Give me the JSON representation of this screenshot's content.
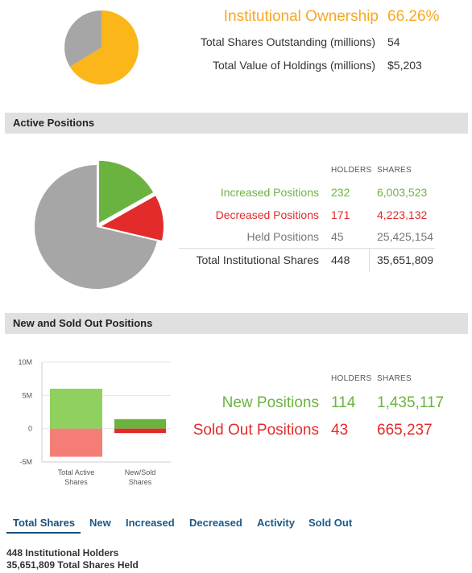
{
  "ownership": {
    "title": "Institutional Ownership",
    "percent_label": "66.26%",
    "rows": [
      {
        "label": "Total Shares Outstanding (millions)",
        "value": "54"
      },
      {
        "label": "Total Value of Holdings (millions)",
        "value": "$5,203"
      }
    ]
  },
  "active": {
    "section_title": "Active Positions",
    "col_holders": "HOLDERS",
    "col_shares": "SHARES",
    "rows": [
      {
        "label": "Increased Positions",
        "holders": "232",
        "shares": "6,003,523"
      },
      {
        "label": "Decreased Positions",
        "holders": "171",
        "shares": "4,223,132"
      },
      {
        "label": "Held Positions",
        "holders": "45",
        "shares": "25,425,154"
      },
      {
        "label": "Total Institutional Shares",
        "holders": "448",
        "shares": "35,651,809"
      }
    ]
  },
  "newsold": {
    "section_title": "New and Sold Out Positions",
    "col_holders": "HOLDERS",
    "col_shares": "SHARES",
    "rows": [
      {
        "label": "New Positions",
        "holders": "114",
        "shares": "1,435,117"
      },
      {
        "label": "Sold Out Positions",
        "holders": "43",
        "shares": "665,237"
      }
    ]
  },
  "tabs": [
    "Total Shares",
    "New",
    "Increased",
    "Decreased",
    "Activity",
    "Sold Out"
  ],
  "summary": {
    "line1": "448 Institutional Holders",
    "line2": "35,651,809 Total Shares Held"
  },
  "colors": {
    "orange": "#f7a823",
    "green": "#6bb340",
    "red": "#e32b2b",
    "gray": "#a6a6a6"
  },
  "chart_data": [
    {
      "type": "pie",
      "labels": [
        "Institutional",
        "Other"
      ],
      "values": [
        66.26,
        33.74
      ],
      "colors": [
        "#fbb61a",
        "#a6a6a6"
      ]
    },
    {
      "type": "pie",
      "labels": [
        "Increased Positions",
        "Decreased Positions",
        "Held Positions"
      ],
      "values": [
        6003523,
        4223132,
        25425154
      ],
      "colors": [
        "#6bb340",
        "#e32b2b",
        "#a6a6a6"
      ],
      "exploded": [
        "Increased Positions",
        "Decreased Positions"
      ]
    },
    {
      "type": "bar",
      "stacked": true,
      "categories": [
        "Total Active Shares",
        "New/Sold Shares"
      ],
      "series": [
        {
          "name": "Increased Positions",
          "values": [
            6003523,
            null
          ],
          "color": "#8fd05e"
        },
        {
          "name": "Decreased Positions",
          "values": [
            -4223132,
            null
          ],
          "color": "#f47e77"
        },
        {
          "name": "New Positions",
          "values": [
            null,
            1435117
          ],
          "color": "#6bb340"
        },
        {
          "name": "Sold Out Positions",
          "values": [
            null,
            -665237
          ],
          "color": "#e32b2b"
        }
      ],
      "yticks": [
        "10M",
        "5M",
        "0",
        "-5M"
      ],
      "ylim": [
        -5000000,
        10000000
      ],
      "grid": true
    }
  ]
}
